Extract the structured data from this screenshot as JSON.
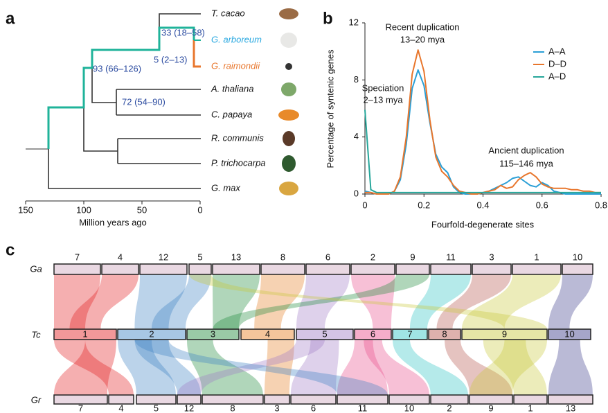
{
  "panel_labels": [
    "a",
    "b",
    "c"
  ],
  "tree": {
    "taxa": [
      "T. cacao",
      "G. arboreum",
      "G. raimondii",
      "A. thaliana",
      "C. papaya",
      "R. communis",
      "P. trichocarpa",
      "G. max"
    ],
    "node_labels": [
      "33 (18–58)",
      "5 (2–13)",
      "93 (66–126)",
      "72 (54–90)"
    ],
    "xlabel": "Million years ago",
    "xlim": [
      150,
      0
    ],
    "xticks": [
      150,
      100,
      50,
      0
    ]
  },
  "chart_data": {
    "type": "line",
    "ylabel": "Percentage of syntenic genes",
    "xlabel": "Fourfold-degenerate sites",
    "annotations": [
      "Speciation",
      "2–13 mya",
      "Recent duplication",
      "13–20 mya",
      "Ancient duplication",
      "115–146 mya"
    ],
    "x": [
      0,
      0.02,
      0.04,
      0.06,
      0.08,
      0.1,
      0.12,
      0.14,
      0.16,
      0.18,
      0.2,
      0.22,
      0.24,
      0.26,
      0.28,
      0.3,
      0.32,
      0.34,
      0.36,
      0.38,
      0.4,
      0.42,
      0.44,
      0.46,
      0.48,
      0.5,
      0.52,
      0.54,
      0.56,
      0.58,
      0.6,
      0.62,
      0.64,
      0.66,
      0.68,
      0.7,
      0.72,
      0.74,
      0.76,
      0.78,
      0.8
    ],
    "series": [
      {
        "name": "A–A",
        "color": "#2a9fd6",
        "values": [
          0.2,
          0.1,
          0,
          0,
          0,
          0.2,
          1.0,
          3.5,
          7.4,
          8.7,
          7.6,
          5.0,
          2.8,
          1.9,
          1.5,
          0.5,
          0.1,
          0,
          0,
          0,
          0.1,
          0.2,
          0.4,
          0.6,
          0.8,
          1.1,
          1.2,
          0.9,
          0.6,
          0.5,
          0.8,
          0.6,
          0.2,
          0.1,
          0,
          0,
          0,
          0,
          0,
          0,
          0
        ]
      },
      {
        "name": "D–D",
        "color": "#e8762c",
        "values": [
          0.1,
          0.1,
          0,
          0,
          0,
          0.2,
          1.2,
          4.0,
          8.4,
          10.1,
          8.6,
          5.2,
          2.6,
          1.6,
          1.2,
          0.6,
          0.2,
          0.1,
          0,
          0,
          0.1,
          0.2,
          0.3,
          0.6,
          0.4,
          0.5,
          1.0,
          1.3,
          1.5,
          1.2,
          0.7,
          0.5,
          0.4,
          0.4,
          0.4,
          0.3,
          0.3,
          0.2,
          0.2,
          0.1,
          0.1
        ]
      },
      {
        "name": "A–D",
        "color": "#26a69a",
        "values": [
          5.9,
          0.3,
          0.1,
          0.1,
          0.1,
          0.1,
          0.1,
          0.1,
          0.1,
          0.1,
          0.1,
          0.1,
          0.1,
          0.1,
          0.1,
          0.1,
          0.1,
          0.1,
          0.1,
          0.1,
          0.1,
          0.1,
          0.1,
          0.1,
          0.1,
          0.1,
          0.1,
          0.1,
          0.1,
          0.1,
          0.1,
          0.1,
          0.1,
          0.1,
          0.1,
          0.1,
          0.1,
          0.1,
          0.1,
          0.1,
          0.1
        ]
      }
    ],
    "xlim": [
      0,
      0.8
    ],
    "ylim": [
      0,
      12
    ],
    "xticks": [
      0,
      0.2,
      0.4,
      0.6,
      0.8
    ],
    "yticks": [
      0,
      4,
      8,
      12
    ],
    "legend": "upper right"
  },
  "synteny": {
    "row_labels": [
      "Ga",
      "Tc",
      "Gr"
    ],
    "ga": [
      "7",
      "4",
      "12",
      "5",
      "13",
      "8",
      "6",
      "2",
      "9",
      "11",
      "3",
      "1",
      "10"
    ],
    "tc": [
      "1",
      "2",
      "3",
      "4",
      "5",
      "6",
      "7",
      "8",
      "9",
      "10"
    ],
    "gr": [
      "7",
      "4",
      "5",
      "12",
      "8",
      "3",
      "6",
      "11",
      "10",
      "2",
      "9",
      "1",
      "13"
    ]
  }
}
